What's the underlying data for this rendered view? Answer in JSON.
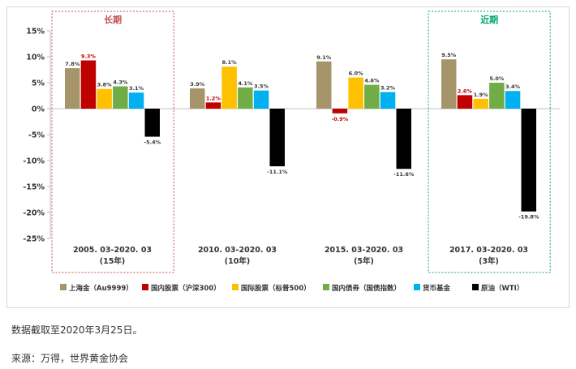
{
  "chart_data": {
    "type": "bar",
    "categories": [
      {
        "period": "2005. 03-2020. 03",
        "span": "(15年)"
      },
      {
        "period": "2010. 03-2020. 03",
        "span": "(10年)"
      },
      {
        "period": "2015. 03-2020. 03",
        "span": "(5年)"
      },
      {
        "period": "2017. 03-2020. 03",
        "span": "(3年)"
      }
    ],
    "series": [
      {
        "name": "上海金（Au9999）",
        "color": "#a6946a",
        "values": [
          7.8,
          3.9,
          9.1,
          9.5
        ],
        "labels": [
          "7.8%",
          "3.9%",
          "9.1%",
          "9.5%"
        ]
      },
      {
        "name": "国内股票（沪深300）",
        "color": "#c00000",
        "values": [
          9.3,
          1.2,
          -0.9,
          2.6
        ],
        "labels": [
          "9.3%",
          "1.2%",
          "-0.9%",
          "2.6%"
        ]
      },
      {
        "name": "国际股票（标普500）",
        "color": "#ffc000",
        "values": [
          3.8,
          8.1,
          6.0,
          1.9
        ],
        "labels": [
          "3.8%",
          "8.1%",
          "6.0%",
          "1.9%"
        ]
      },
      {
        "name": "国内债券（国债指数）",
        "color": "#70ad47",
        "values": [
          4.3,
          4.1,
          4.6,
          5.0
        ],
        "labels": [
          "4.3%",
          "4.1%",
          "4.6%",
          "5.0%"
        ]
      },
      {
        "name": "货币基金",
        "color": "#00b0f0",
        "values": [
          3.1,
          3.5,
          3.2,
          3.4
        ],
        "labels": [
          "3.1%",
          "3.5%",
          "3.2%",
          "3.4%"
        ]
      },
      {
        "name": "原油（WTI）",
        "color": "#000000",
        "values": [
          -5.4,
          -11.1,
          -11.6,
          -19.8
        ],
        "labels": [
          "-5.4%",
          "-11.1%",
          "-11.6%",
          "-19.8%"
        ]
      }
    ],
    "ylim": [
      -25,
      15
    ],
    "yticks": [
      15,
      10,
      5,
      0,
      -5,
      -10,
      -15,
      -20,
      -25
    ],
    "ytick_labels": [
      "15%",
      "10%",
      "5%",
      "0%",
      "-5%",
      "-10%",
      "-15%",
      "-20%",
      "-25%"
    ],
    "annotations": [
      {
        "text": "长期",
        "group": 0,
        "color": "#c0504d",
        "style": "dotted-box"
      },
      {
        "text": "近期",
        "group": 3,
        "color": "#00a86b",
        "style": "dotted-box"
      }
    ],
    "legend_position": "bottom",
    "grid": false
  },
  "footnotes": {
    "cutoff": "数据截取至2020年3月25日。",
    "source": "来源：万得，世界黄金协会"
  }
}
